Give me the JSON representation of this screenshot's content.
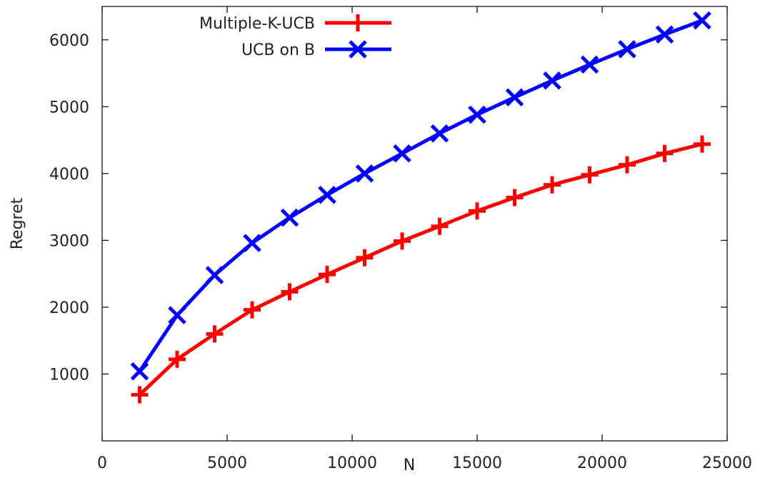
{
  "chart_data": {
    "type": "line",
    "title": "",
    "xlabel": "N",
    "ylabel": "Regret",
    "xlim": [
      0,
      25000
    ],
    "ylim": [
      0,
      6500
    ],
    "xticks": [
      0,
      5000,
      10000,
      15000,
      20000,
      25000
    ],
    "yticks": [
      1000,
      2000,
      3000,
      4000,
      5000,
      6000
    ],
    "grid": false,
    "legend_position": "top-left",
    "x": [
      1500,
      3000,
      4500,
      6000,
      7500,
      9000,
      10500,
      12000,
      13500,
      15000,
      16500,
      18000,
      19500,
      21000,
      22500,
      24000
    ],
    "series": [
      {
        "name": "Multiple-K-UCB",
        "color": "#ff0000",
        "marker": "plus",
        "values": [
          690,
          1220,
          1600,
          1960,
          2230,
          2490,
          2740,
          2990,
          3210,
          3440,
          3640,
          3830,
          3980,
          4130,
          4300,
          4440
        ]
      },
      {
        "name": "UCB on B",
        "color": "#0000ff",
        "marker": "cross",
        "values": [
          1040,
          1880,
          2480,
          2960,
          3340,
          3680,
          4000,
          4300,
          4600,
          4880,
          5140,
          5390,
          5630,
          5860,
          6080,
          6290
        ]
      }
    ]
  }
}
